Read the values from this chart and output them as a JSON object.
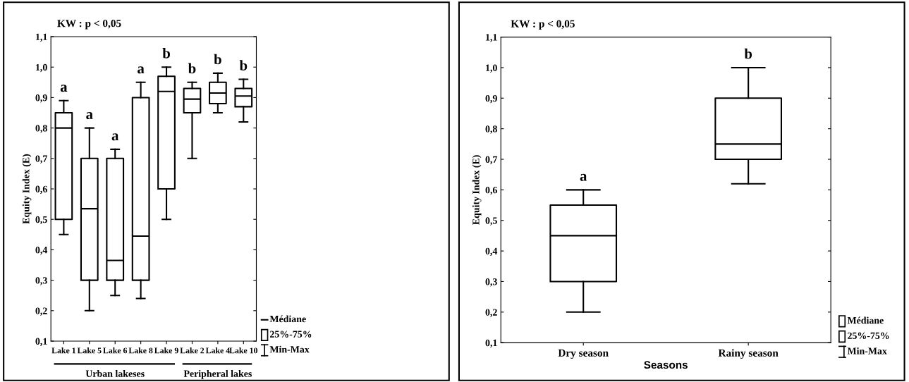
{
  "chart_data": [
    {
      "type": "box",
      "title": "KW : p < 0,05",
      "ylabel": "Equity Index (E)",
      "categories": [
        "Lake 1",
        "Lake 5",
        "Lake 6",
        "Lake 8",
        "Lake 9",
        "Lake 2",
        "Lake 4",
        "Lake 10"
      ],
      "boxes": [
        {
          "low": 0.45,
          "q1": 0.5,
          "median": 0.8,
          "q3": 0.85,
          "high": 0.89
        },
        {
          "low": 0.2,
          "q1": 0.3,
          "median": 0.535,
          "q3": 0.7,
          "high": 0.8
        },
        {
          "low": 0.25,
          "q1": 0.3,
          "median": 0.365,
          "q3": 0.7,
          "high": 0.73
        },
        {
          "low": 0.24,
          "q1": 0.3,
          "median": 0.445,
          "q3": 0.9,
          "high": 0.95
        },
        {
          "low": 0.5,
          "q1": 0.6,
          "median": 0.92,
          "q3": 0.97,
          "high": 1.0
        },
        {
          "low": 0.7,
          "q1": 0.85,
          "median": 0.895,
          "q3": 0.93,
          "high": 0.95
        },
        {
          "low": 0.85,
          "q1": 0.88,
          "median": 0.915,
          "q3": 0.95,
          "high": 0.98
        },
        {
          "low": 0.82,
          "q1": 0.87,
          "median": 0.905,
          "q3": 0.93,
          "high": 0.96
        }
      ],
      "ylim": [
        0.1,
        1.1
      ],
      "yticks": [
        {
          "value": 0.1,
          "label": "0,1"
        },
        {
          "value": 0.2,
          "label": "0,2"
        },
        {
          "value": 0.3,
          "label": "0,3"
        },
        {
          "value": 0.4,
          "label": "0,4"
        },
        {
          "value": 0.5,
          "label": "0,5"
        },
        {
          "value": 0.6,
          "label": "0,6"
        },
        {
          "value": 0.7,
          "label": "0,7"
        },
        {
          "value": 0.8,
          "label": "0,8"
        },
        {
          "value": 0.9,
          "label": "0,9"
        },
        {
          "value": 1.0,
          "label": "1,0"
        },
        {
          "value": 1.1,
          "label": "1,1"
        }
      ],
      "annotations": [
        "a",
        "a",
        "a",
        "a",
        "b",
        "b",
        "b",
        "b",
        "Urban lakeses",
        "Peripheral lakes",
        "Médiane",
        "25%-75%",
        "Min-Max"
      ],
      "grid": false
    },
    {
      "type": "box",
      "title": "KW : p < 0,05",
      "ylabel": "Equity Index (E)",
      "xlabel": "Seasons",
      "categories": [
        "Dry season",
        "Rainy season"
      ],
      "boxes": [
        {
          "low": 0.2,
          "q1": 0.3,
          "median": 0.45,
          "q3": 0.55,
          "high": 0.6
        },
        {
          "low": 0.62,
          "q1": 0.7,
          "median": 0.75,
          "q3": 0.9,
          "high": 1.0
        }
      ],
      "ylim": [
        0.1,
        1.1
      ],
      "yticks": [
        {
          "value": 0.1,
          "label": "0,1"
        },
        {
          "value": 0.2,
          "label": "0,2"
        },
        {
          "value": 0.3,
          "label": "0,3"
        },
        {
          "value": 0.4,
          "label": "0,4"
        },
        {
          "value": 0.5,
          "label": "0,5"
        },
        {
          "value": 0.6,
          "label": "0,6"
        },
        {
          "value": 0.7,
          "label": "0,7"
        },
        {
          "value": 0.8,
          "label": "0,8"
        },
        {
          "value": 0.9,
          "label": "0,9"
        },
        {
          "value": 1.0,
          "label": "1,0"
        },
        {
          "value": 1.1,
          "label": "1,1"
        }
      ],
      "annotations": [
        "a",
        "b",
        "Médiane",
        "25%-75%",
        "Min-Max"
      ],
      "grid": false
    }
  ]
}
